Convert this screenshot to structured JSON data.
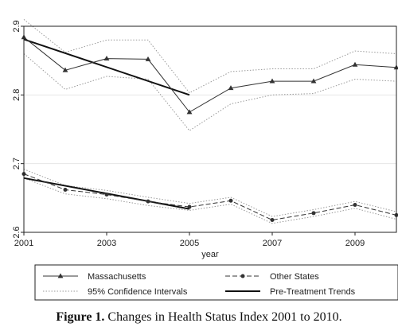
{
  "caption": {
    "label": "Figure 1.",
    "text": "Changes in Health Status Index 2001 to 2010."
  },
  "chart_data": {
    "type": "line",
    "title": "",
    "xlabel": "year",
    "ylabel": "",
    "xlim": [
      2001,
      2010
    ],
    "ylim": [
      2.6,
      2.9
    ],
    "x_ticks": [
      2001,
      2003,
      2005,
      2007,
      2009
    ],
    "y_ticks": [
      2.6,
      2.7,
      2.8,
      2.9
    ],
    "x_tick_labels": [
      "2001",
      "2003",
      "2005",
      "2007",
      "2009"
    ],
    "y_tick_labels": [
      "2.6",
      "2.7",
      "2.8",
      "2.9"
    ],
    "grid": "horizontal",
    "legend_position": "bottom",
    "x": [
      2001,
      2002,
      2003,
      2004,
      2005,
      2006,
      2007,
      2008,
      2009,
      2010
    ],
    "series": [
      {
        "name": "Massachusetts",
        "style": "solid-triangle",
        "color": "#333333",
        "values": [
          2.884,
          2.836,
          2.853,
          2.852,
          2.775,
          2.81,
          2.82,
          2.82,
          2.844,
          2.84
        ]
      },
      {
        "name": "Other States",
        "style": "dashed-circle",
        "color": "#333333",
        "values": [
          2.685,
          2.662,
          2.655,
          2.645,
          2.637,
          2.646,
          2.618,
          2.628,
          2.64,
          2.625
        ]
      },
      {
        "name": "95% Confidence Intervals",
        "style": "dotted",
        "color": "#999999",
        "bands": [
          {
            "upper": [
              2.91,
              2.862,
              2.88,
              2.88,
              2.803,
              2.834,
              2.838,
              2.838,
              2.864,
              2.86
            ],
            "lower": [
              2.86,
              2.808,
              2.827,
              2.823,
              2.748,
              2.787,
              2.8,
              2.802,
              2.823,
              2.82
            ]
          },
          {
            "upper": [
              2.692,
              2.668,
              2.661,
              2.651,
              2.642,
              2.651,
              2.623,
              2.633,
              2.645,
              2.63
            ],
            "lower": [
              2.679,
              2.656,
              2.649,
              2.639,
              2.632,
              2.641,
              2.613,
              2.623,
              2.635,
              2.619
            ]
          }
        ]
      },
      {
        "name": "Pre-Treatment Trends",
        "style": "thick-solid",
        "color": "#111111",
        "segments": [
          {
            "x": [
              2001,
              2005
            ],
            "values": [
              2.881,
              2.8
            ]
          },
          {
            "x": [
              2001,
              2005
            ],
            "values": [
              2.679,
              2.634
            ]
          }
        ]
      }
    ]
  }
}
